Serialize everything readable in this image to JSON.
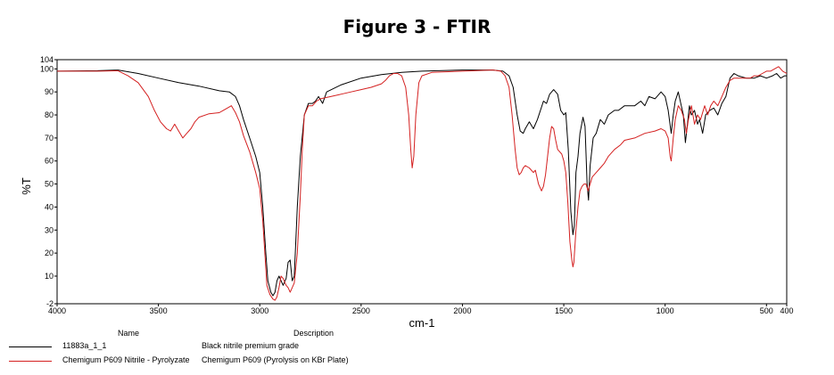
{
  "chart_data": {
    "type": "line",
    "title": "Figure 3 - FTIR",
    "xlabel": "cm-1",
    "ylabel": "%T",
    "xlim": [
      4000,
      400
    ],
    "ylim": [
      -2,
      104
    ],
    "x_reversed": true,
    "x_ticks": [
      4000,
      3500,
      3000,
      2500,
      2000,
      1500,
      1000,
      500,
      400
    ],
    "y_ticks": [
      -2,
      10,
      20,
      30,
      40,
      50,
      60,
      70,
      80,
      90,
      100,
      104
    ],
    "grid": false,
    "series": [
      {
        "name": "11883a_1_1",
        "description": "Black nitrile premium grade",
        "color": "#000000",
        "points": [
          [
            4000,
            99
          ],
          [
            3800,
            99.2
          ],
          [
            3700,
            99.5
          ],
          [
            3600,
            98
          ],
          [
            3500,
            96
          ],
          [
            3400,
            94
          ],
          [
            3300,
            92.5
          ],
          [
            3200,
            90.5
          ],
          [
            3150,
            90
          ],
          [
            3120,
            88
          ],
          [
            3100,
            84
          ],
          [
            3080,
            78
          ],
          [
            3050,
            70
          ],
          [
            3020,
            62
          ],
          [
            3000,
            55
          ],
          [
            2985,
            40
          ],
          [
            2970,
            20
          ],
          [
            2960,
            8
          ],
          [
            2945,
            3
          ],
          [
            2935,
            1.5
          ],
          [
            2925,
            3
          ],
          [
            2915,
            8
          ],
          [
            2905,
            10
          ],
          [
            2895,
            8
          ],
          [
            2885,
            6
          ],
          [
            2870,
            9
          ],
          [
            2860,
            16
          ],
          [
            2850,
            17
          ],
          [
            2840,
            8
          ],
          [
            2830,
            10
          ],
          [
            2815,
            40
          ],
          [
            2800,
            62
          ],
          [
            2780,
            80
          ],
          [
            2760,
            85
          ],
          [
            2740,
            85
          ],
          [
            2725,
            86
          ],
          [
            2710,
            88
          ],
          [
            2690,
            85
          ],
          [
            2670,
            90
          ],
          [
            2600,
            93
          ],
          [
            2500,
            96
          ],
          [
            2400,
            97.5
          ],
          [
            2300,
            98.5
          ],
          [
            2200,
            99
          ],
          [
            2000,
            99.5
          ],
          [
            1850,
            99.5
          ],
          [
            1800,
            99
          ],
          [
            1770,
            97
          ],
          [
            1750,
            92
          ],
          [
            1730,
            80
          ],
          [
            1715,
            73
          ],
          [
            1700,
            72
          ],
          [
            1690,
            74
          ],
          [
            1670,
            77
          ],
          [
            1650,
            74
          ],
          [
            1630,
            78
          ],
          [
            1600,
            86
          ],
          [
            1585,
            85
          ],
          [
            1570,
            89
          ],
          [
            1550,
            91
          ],
          [
            1530,
            89
          ],
          [
            1515,
            82
          ],
          [
            1500,
            80
          ],
          [
            1490,
            81
          ],
          [
            1478,
            65
          ],
          [
            1465,
            38
          ],
          [
            1455,
            28
          ],
          [
            1448,
            32
          ],
          [
            1440,
            55
          ],
          [
            1430,
            62
          ],
          [
            1420,
            72
          ],
          [
            1405,
            79
          ],
          [
            1395,
            75
          ],
          [
            1385,
            50
          ],
          [
            1378,
            43
          ],
          [
            1370,
            58
          ],
          [
            1355,
            70
          ],
          [
            1340,
            72
          ],
          [
            1320,
            78
          ],
          [
            1300,
            76
          ],
          [
            1280,
            80
          ],
          [
            1250,
            82
          ],
          [
            1230,
            82
          ],
          [
            1200,
            84
          ],
          [
            1150,
            84
          ],
          [
            1120,
            86
          ],
          [
            1100,
            84
          ],
          [
            1080,
            88
          ],
          [
            1050,
            87
          ],
          [
            1020,
            90
          ],
          [
            1000,
            88
          ],
          [
            985,
            82
          ],
          [
            970,
            72
          ],
          [
            960,
            80
          ],
          [
            950,
            86
          ],
          [
            935,
            90
          ],
          [
            920,
            84
          ],
          [
            910,
            80
          ],
          [
            900,
            68
          ],
          [
            890,
            76
          ],
          [
            880,
            84
          ],
          [
            870,
            80
          ],
          [
            855,
            82
          ],
          [
            840,
            76
          ],
          [
            830,
            78
          ],
          [
            815,
            72
          ],
          [
            800,
            80
          ],
          [
            780,
            82
          ],
          [
            760,
            83
          ],
          [
            740,
            80
          ],
          [
            720,
            85
          ],
          [
            700,
            88
          ],
          [
            680,
            96
          ],
          [
            660,
            98
          ],
          [
            640,
            97
          ],
          [
            600,
            96
          ],
          [
            560,
            96
          ],
          [
            530,
            97
          ],
          [
            500,
            96
          ],
          [
            470,
            97
          ],
          [
            450,
            98
          ],
          [
            430,
            96
          ],
          [
            410,
            97
          ],
          [
            400,
            97
          ]
        ]
      },
      {
        "name": "Chemigum P609 Nitrile - Pyrolyzate",
        "description": "Chemigum P609 (Pyrolysis on KBr Plate)",
        "color": "#d42020",
        "points": [
          [
            4000,
            99
          ],
          [
            3800,
            99
          ],
          [
            3700,
            99.2
          ],
          [
            3650,
            97
          ],
          [
            3600,
            94
          ],
          [
            3550,
            88
          ],
          [
            3520,
            82
          ],
          [
            3490,
            77
          ],
          [
            3460,
            74
          ],
          [
            3440,
            73
          ],
          [
            3420,
            76
          ],
          [
            3400,
            73
          ],
          [
            3380,
            70
          ],
          [
            3360,
            72
          ],
          [
            3340,
            74
          ],
          [
            3320,
            77
          ],
          [
            3300,
            79
          ],
          [
            3250,
            80.5
          ],
          [
            3200,
            81
          ],
          [
            3180,
            82
          ],
          [
            3160,
            83
          ],
          [
            3140,
            84
          ],
          [
            3120,
            81
          ],
          [
            3100,
            77
          ],
          [
            3080,
            71
          ],
          [
            3050,
            64
          ],
          [
            3020,
            55
          ],
          [
            3000,
            48
          ],
          [
            2985,
            34
          ],
          [
            2975,
            20
          ],
          [
            2965,
            6
          ],
          [
            2950,
            2
          ],
          [
            2935,
            0
          ],
          [
            2925,
            -0.5
          ],
          [
            2915,
            1
          ],
          [
            2905,
            5
          ],
          [
            2895,
            10
          ],
          [
            2885,
            9
          ],
          [
            2870,
            6
          ],
          [
            2860,
            5
          ],
          [
            2850,
            3
          ],
          [
            2840,
            5
          ],
          [
            2830,
            7
          ],
          [
            2815,
            20
          ],
          [
            2800,
            45
          ],
          [
            2790,
            65
          ],
          [
            2780,
            80
          ],
          [
            2760,
            84
          ],
          [
            2740,
            84
          ],
          [
            2720,
            86
          ],
          [
            2700,
            87
          ],
          [
            2650,
            88
          ],
          [
            2600,
            89
          ],
          [
            2550,
            90
          ],
          [
            2500,
            91
          ],
          [
            2450,
            92
          ],
          [
            2400,
            93.5
          ],
          [
            2380,
            95
          ],
          [
            2360,
            97
          ],
          [
            2340,
            98
          ],
          [
            2320,
            98
          ],
          [
            2300,
            97
          ],
          [
            2280,
            92
          ],
          [
            2265,
            80
          ],
          [
            2255,
            65
          ],
          [
            2248,
            57
          ],
          [
            2240,
            62
          ],
          [
            2230,
            80
          ],
          [
            2215,
            94
          ],
          [
            2200,
            97
          ],
          [
            2150,
            98.5
          ],
          [
            2000,
            99
          ],
          [
            1850,
            99.5
          ],
          [
            1810,
            99
          ],
          [
            1790,
            97
          ],
          [
            1770,
            92
          ],
          [
            1755,
            80
          ],
          [
            1740,
            65
          ],
          [
            1730,
            57
          ],
          [
            1720,
            54
          ],
          [
            1710,
            55
          ],
          [
            1700,
            57
          ],
          [
            1690,
            58
          ],
          [
            1670,
            57
          ],
          [
            1650,
            55
          ],
          [
            1640,
            56
          ],
          [
            1625,
            50
          ],
          [
            1610,
            47
          ],
          [
            1600,
            49
          ],
          [
            1590,
            54
          ],
          [
            1580,
            62
          ],
          [
            1570,
            70
          ],
          [
            1560,
            75
          ],
          [
            1550,
            74
          ],
          [
            1540,
            69
          ],
          [
            1530,
            65
          ],
          [
            1510,
            63
          ],
          [
            1500,
            60
          ],
          [
            1490,
            55
          ],
          [
            1480,
            42
          ],
          [
            1470,
            25
          ],
          [
            1460,
            17
          ],
          [
            1455,
            14
          ],
          [
            1450,
            16
          ],
          [
            1440,
            30
          ],
          [
            1430,
            40
          ],
          [
            1420,
            47
          ],
          [
            1410,
            49
          ],
          [
            1400,
            50
          ],
          [
            1390,
            50
          ],
          [
            1380,
            47
          ],
          [
            1370,
            50
          ],
          [
            1360,
            53
          ],
          [
            1340,
            55
          ],
          [
            1320,
            57
          ],
          [
            1300,
            59
          ],
          [
            1280,
            62
          ],
          [
            1250,
            65
          ],
          [
            1220,
            67
          ],
          [
            1200,
            69
          ],
          [
            1150,
            70
          ],
          [
            1100,
            72
          ],
          [
            1050,
            73
          ],
          [
            1020,
            74
          ],
          [
            1000,
            73
          ],
          [
            985,
            70
          ],
          [
            975,
            62
          ],
          [
            970,
            60
          ],
          [
            960,
            70
          ],
          [
            950,
            78
          ],
          [
            935,
            84
          ],
          [
            920,
            82
          ],
          [
            905,
            78
          ],
          [
            895,
            72
          ],
          [
            885,
            78
          ],
          [
            870,
            84
          ],
          [
            855,
            76
          ],
          [
            840,
            80
          ],
          [
            825,
            78
          ],
          [
            805,
            84
          ],
          [
            790,
            80
          ],
          [
            775,
            84
          ],
          [
            760,
            86
          ],
          [
            740,
            84
          ],
          [
            720,
            88
          ],
          [
            700,
            92
          ],
          [
            680,
            95
          ],
          [
            660,
            96
          ],
          [
            640,
            96
          ],
          [
            620,
            96
          ],
          [
            580,
            96
          ],
          [
            560,
            97
          ],
          [
            540,
            97
          ],
          [
            520,
            98
          ],
          [
            500,
            99
          ],
          [
            480,
            99
          ],
          [
            460,
            100
          ],
          [
            440,
            101
          ],
          [
            420,
            99
          ],
          [
            400,
            98
          ]
        ]
      }
    ]
  },
  "legend": {
    "name_header": "Name",
    "description_header": "Description"
  }
}
